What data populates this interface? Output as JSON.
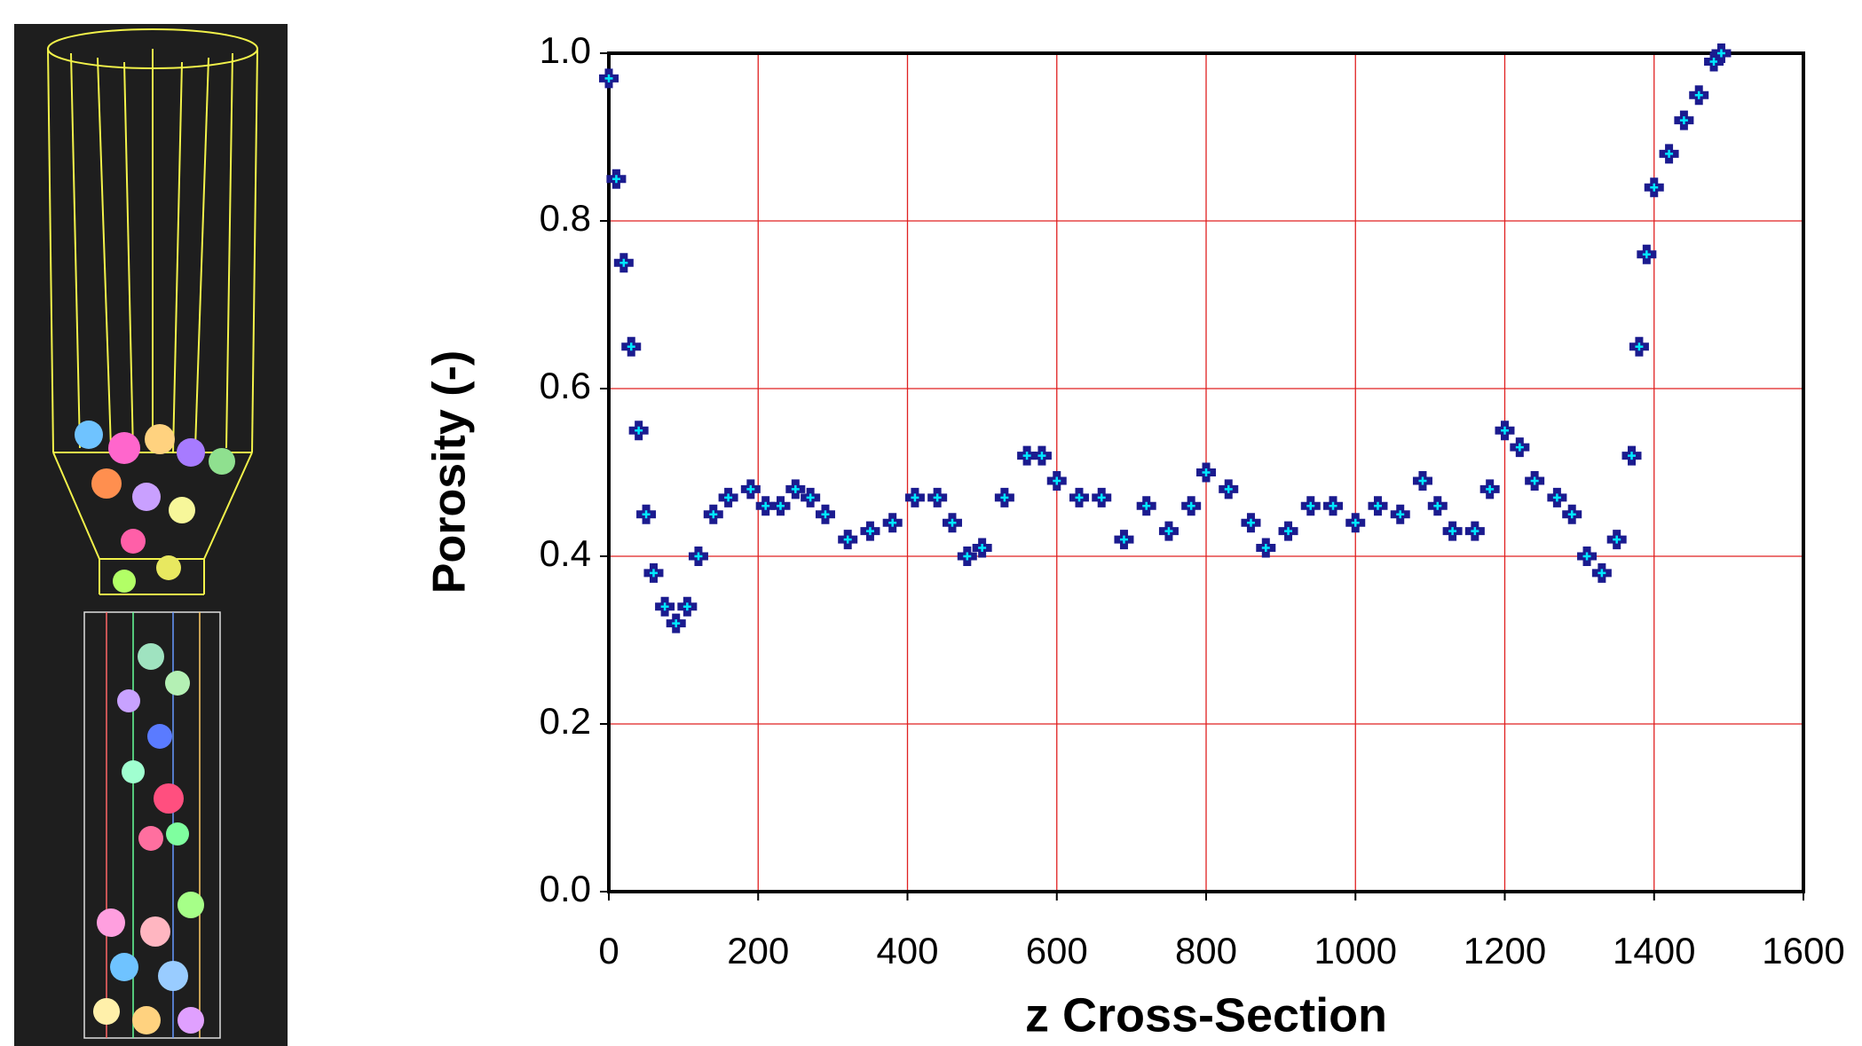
{
  "chart_data": {
    "type": "scatter",
    "x_label": "z Cross-Section",
    "y_label": "Porosity (-)",
    "x": [
      0,
      10,
      20,
      30,
      40,
      50,
      60,
      75,
      90,
      105,
      120,
      140,
      160,
      190,
      210,
      230,
      250,
      270,
      290,
      320,
      350,
      380,
      410,
      440,
      460,
      480,
      500,
      530,
      560,
      580,
      600,
      630,
      660,
      690,
      720,
      750,
      780,
      800,
      830,
      860,
      880,
      910,
      940,
      970,
      1000,
      1030,
      1060,
      1090,
      1110,
      1130,
      1160,
      1180,
      1200,
      1220,
      1240,
      1270,
      1290,
      1310,
      1330,
      1350,
      1370,
      1380,
      1390,
      1400,
      1420,
      1440,
      1460,
      1480,
      1490
    ],
    "values": [
      0.97,
      0.85,
      0.75,
      0.65,
      0.55,
      0.45,
      0.38,
      0.34,
      0.32,
      0.34,
      0.4,
      0.45,
      0.47,
      0.48,
      0.46,
      0.46,
      0.48,
      0.47,
      0.45,
      0.42,
      0.43,
      0.44,
      0.47,
      0.47,
      0.44,
      0.4,
      0.41,
      0.47,
      0.52,
      0.52,
      0.49,
      0.47,
      0.47,
      0.42,
      0.46,
      0.43,
      0.46,
      0.5,
      0.48,
      0.44,
      0.41,
      0.43,
      0.46,
      0.46,
      0.44,
      0.46,
      0.45,
      0.49,
      0.46,
      0.43,
      0.43,
      0.48,
      0.55,
      0.53,
      0.49,
      0.47,
      0.45,
      0.4,
      0.38,
      0.42,
      0.52,
      0.65,
      0.76,
      0.84,
      0.88,
      0.92,
      0.95,
      0.99,
      1.0
    ],
    "color": "#1b1b8f",
    "inner_color": "#00e8ff",
    "xlim": [
      0,
      1600
    ],
    "xticks": [
      0,
      200,
      400,
      600,
      800,
      1000,
      1200,
      1400,
      1600
    ],
    "ylim": [
      0,
      1.0
    ],
    "yticks": [
      {
        "value": 0,
        "label": "0.0"
      },
      0.2,
      0.4,
      0.6,
      0.8,
      {
        "value": 1.0,
        "label": "1.0"
      }
    ],
    "grid": true,
    "grid_color": "#e02020"
  }
}
